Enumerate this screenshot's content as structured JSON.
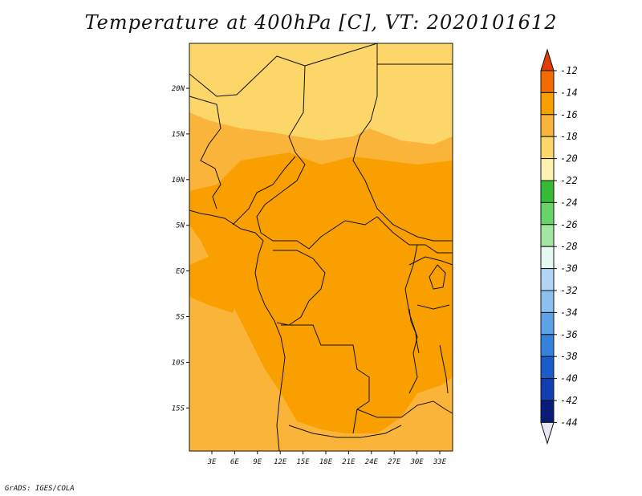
{
  "title": "Temperature at 400hPa [C], VT: 2020101612",
  "credit": "GrADS: IGES/COLA",
  "map": {
    "lat_labels": [
      "20N",
      "15N",
      "10N",
      "5N",
      "EQ",
      "5S",
      "10S",
      "15S"
    ],
    "lon_labels": [
      "3E",
      "6E",
      "9E",
      "12E",
      "15E",
      "18E",
      "21E",
      "24E",
      "27E",
      "30E",
      "33E"
    ]
  },
  "colorbar": {
    "labels": [
      "-12",
      "-14",
      "-16",
      "-18",
      "-20",
      "-22",
      "-24",
      "-26",
      "-28",
      "-30",
      "-32",
      "-34",
      "-36",
      "-38",
      "-40",
      "-42",
      "-44"
    ],
    "colors": [
      "#e34500",
      "#f26a00",
      "#f7a000",
      "#f9b43c",
      "#fbd66a",
      "#fff2b0",
      "#36bb36",
      "#66d466",
      "#a2e6a2",
      "#e6f8f2",
      "#b2d6f6",
      "#8cc0f0",
      "#5ea2e6",
      "#3582dc",
      "#1a5ccc",
      "#1040b0",
      "#081c78"
    ],
    "top_arrow_color": "#e23c00",
    "bottom_arrow_color": "#e6e6f6"
  },
  "field_colors": {
    "t14": "#f9a000",
    "t16": "#fbb43a",
    "t18": "#fdd66a",
    "t20": "#fff0a8"
  }
}
